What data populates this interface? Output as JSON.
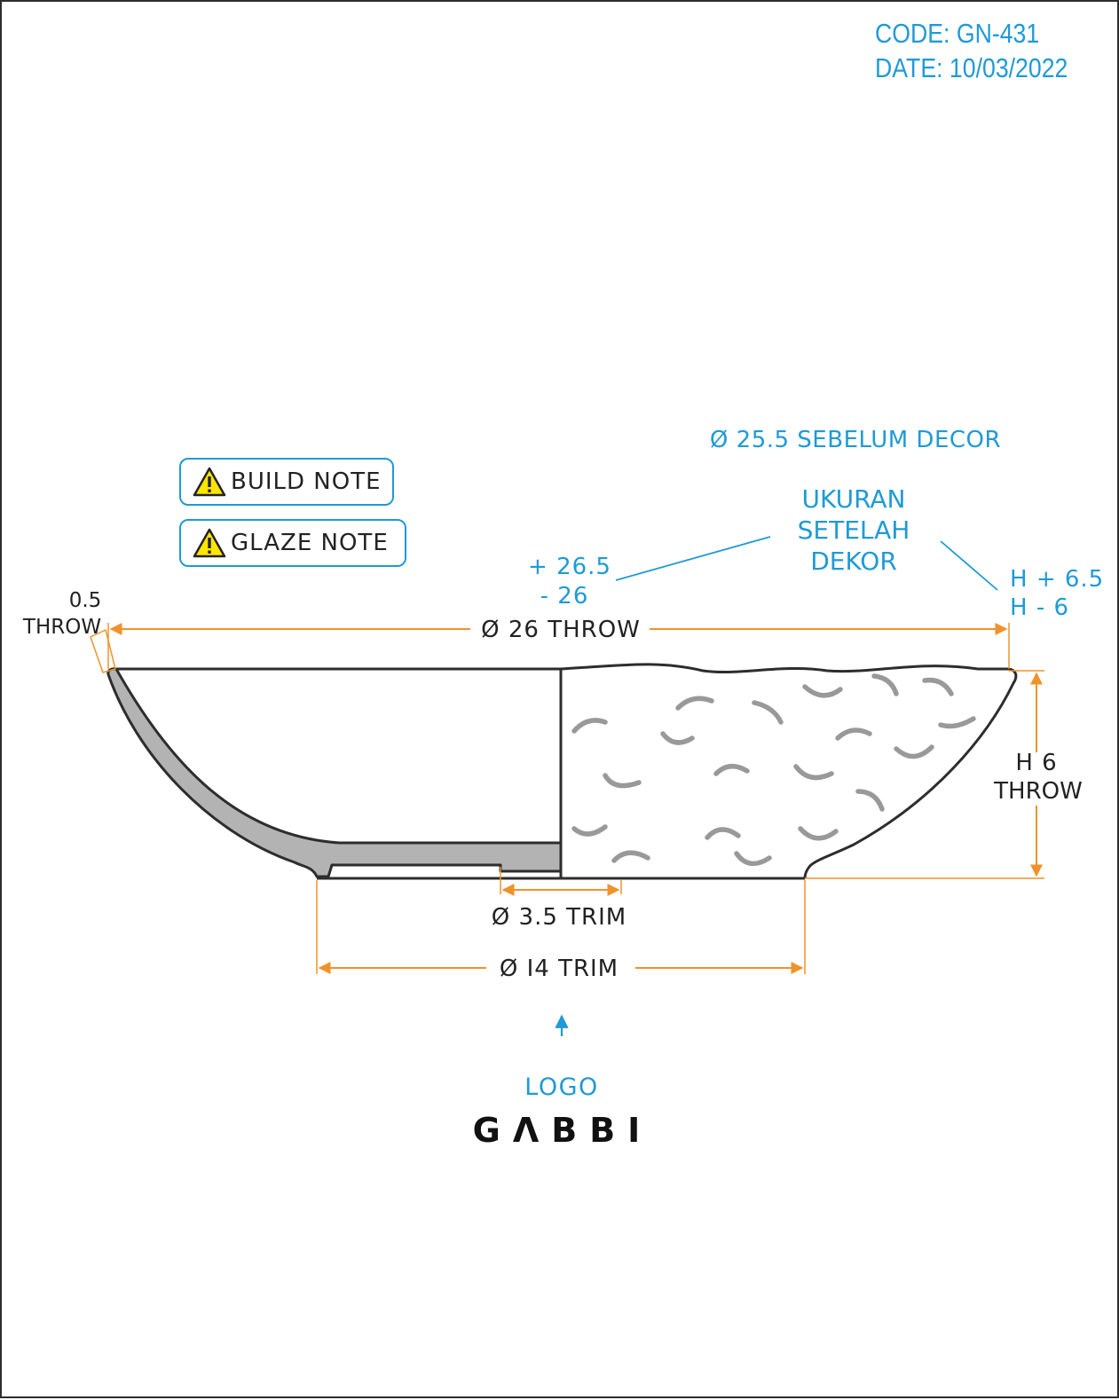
{
  "header": {
    "code": "CODE: GN-431",
    "date": "DATE: 10/03/2022"
  },
  "notes": [
    {
      "label": "BUILD NOTE",
      "icon": "warning-triangle-icon"
    },
    {
      "label": "GLAZE NOTE",
      "icon": "warning-triangle-icon"
    }
  ],
  "annotations": {
    "before_decor": "Ø 25.5 SEBELUM DECOR",
    "after_decor": [
      "UKURAN",
      "SETELAH",
      "DEKOR"
    ],
    "diameter_tolerance": [
      "+ 26.5",
      "- 26"
    ],
    "height_tolerance": [
      "H + 6.5",
      "H - 6"
    ]
  },
  "dimensions": {
    "wall_thickness": [
      "0.5",
      "THROW"
    ],
    "outer_diameter": "Ø 26 THROW",
    "height": [
      "H 6",
      "THROW"
    ],
    "inner_foot": "Ø 3.5 TRIM",
    "foot_diameter": "Ø I4 TRIM"
  },
  "logo": {
    "label": "LOGO",
    "brand": "GΛBBI"
  },
  "colors": {
    "accent_blue": "#1f9ad6",
    "dimension_orange": "#f0922b",
    "outline": "#2d2d2d",
    "section_fill": "#b3b3b3",
    "decor_marks": "#999999",
    "warning_yellow": "#ffe600"
  }
}
